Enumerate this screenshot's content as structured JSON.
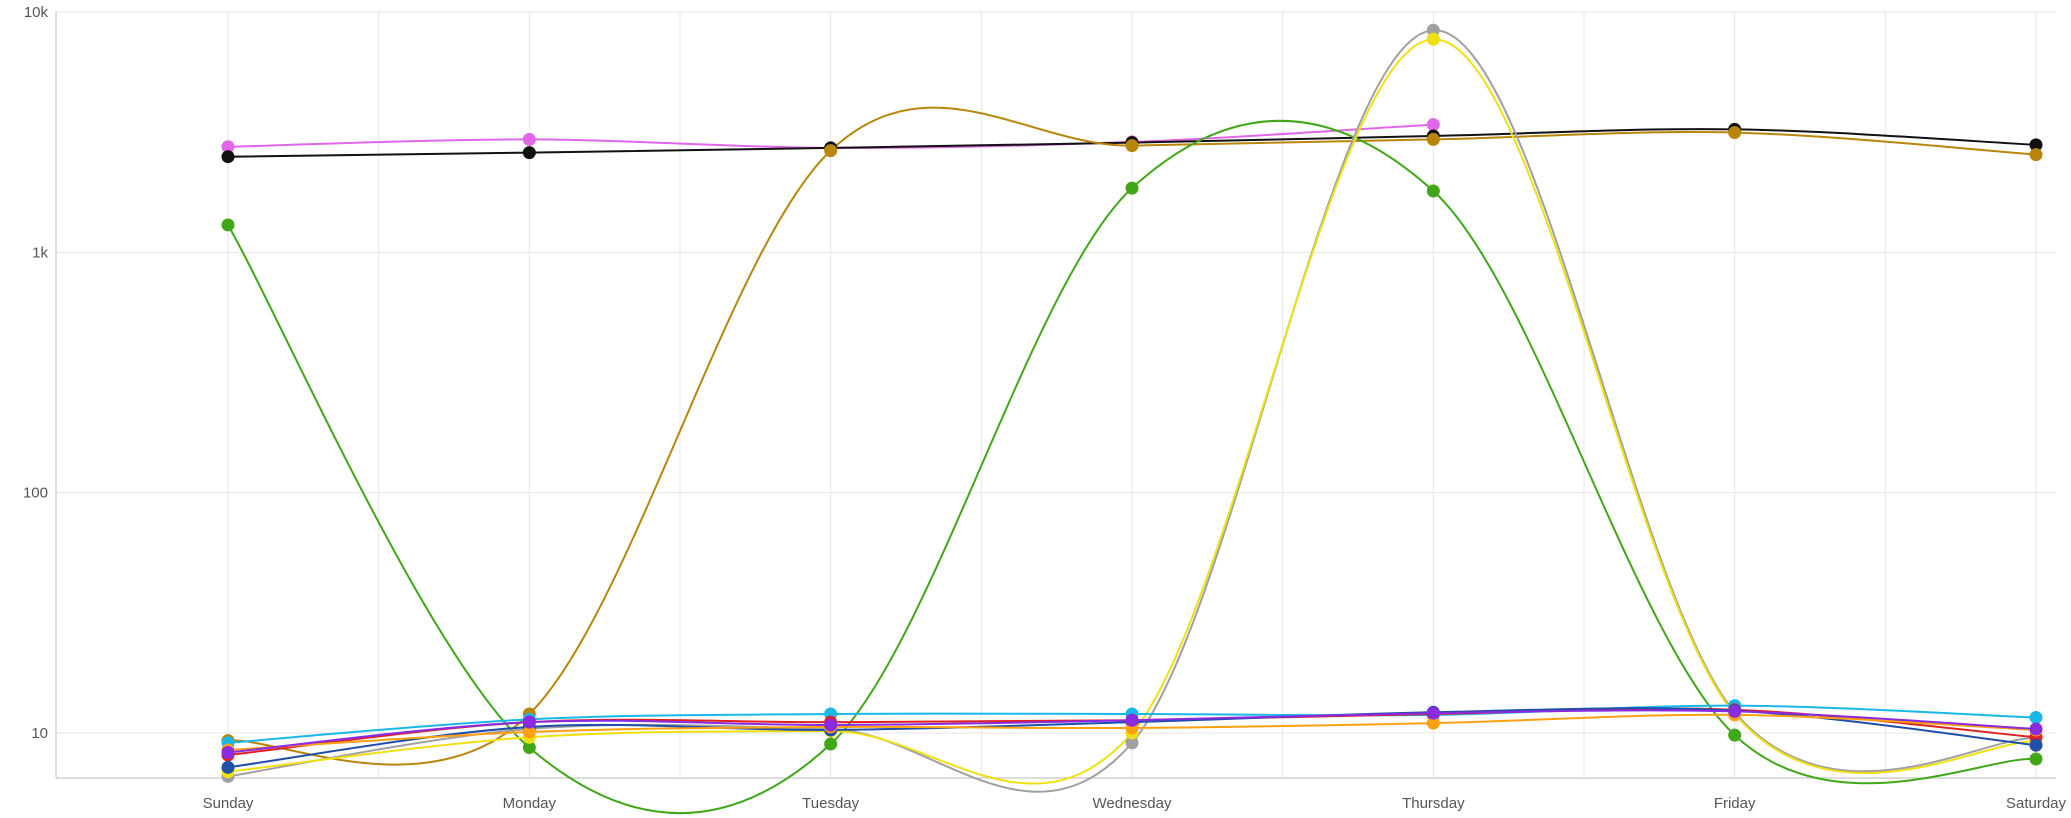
{
  "chart_data": {
    "type": "line",
    "title": "",
    "xlabel": "",
    "ylabel": "",
    "y_scale": "log",
    "ylim": [
      6.5,
      10000
    ],
    "grid": true,
    "legend": "none",
    "categories": [
      "Sunday",
      "Monday",
      "Tuesday",
      "Wednesday",
      "Thursday",
      "Friday",
      "Saturday"
    ],
    "y_ticks": [
      {
        "value": 10,
        "label": "10"
      },
      {
        "value": 100,
        "label": "100"
      },
      {
        "value": 1000,
        "label": "1k"
      },
      {
        "value": 10000,
        "label": "10k"
      }
    ],
    "series": [
      {
        "color": "#e067e8",
        "values": [
          2750,
          2950,
          2720,
          2880,
          3400,
          null,
          null
        ]
      },
      {
        "color": "#111111",
        "values": [
          2500,
          2600,
          2720,
          2860,
          3050,
          3250,
          2800
        ]
      },
      {
        "color": "#b8860b",
        "values": [
          9.3,
          12,
          2650,
          2780,
          2950,
          3150,
          2550
        ]
      },
      {
        "color": "#40a818",
        "values": [
          1300,
          8.7,
          9,
          1850,
          1800,
          9.8,
          7.8
        ]
      },
      {
        "color": "#a0a0a0",
        "values": [
          6.6,
          10.4,
          10.4,
          9.1,
          8400,
          12.2,
          9.5
        ]
      },
      {
        "color": "#f0e010",
        "values": [
          6.9,
          9.6,
          10.2,
          10,
          7700,
          12,
          9.2
        ]
      },
      {
        "color": "#1ab8e8",
        "values": [
          9.1,
          11.4,
          12,
          12,
          11.9,
          13,
          11.6
        ]
      },
      {
        "color": "#e02020",
        "values": [
          8.1,
          11.1,
          11.1,
          11.3,
          12,
          12.5,
          9.6
        ]
      },
      {
        "color": "#1f4fa8",
        "values": [
          7.2,
          10.6,
          10.3,
          11.1,
          12.2,
          12.4,
          8.9
        ]
      },
      {
        "color": "#ffa010",
        "values": [
          8.5,
          10.1,
          10.6,
          10.5,
          11,
          11.9,
          10.3
        ]
      },
      {
        "color": "#8a2be2",
        "values": [
          8.3,
          11.1,
          10.8,
          11.3,
          12.1,
          12.3,
          10.4
        ]
      }
    ]
  }
}
